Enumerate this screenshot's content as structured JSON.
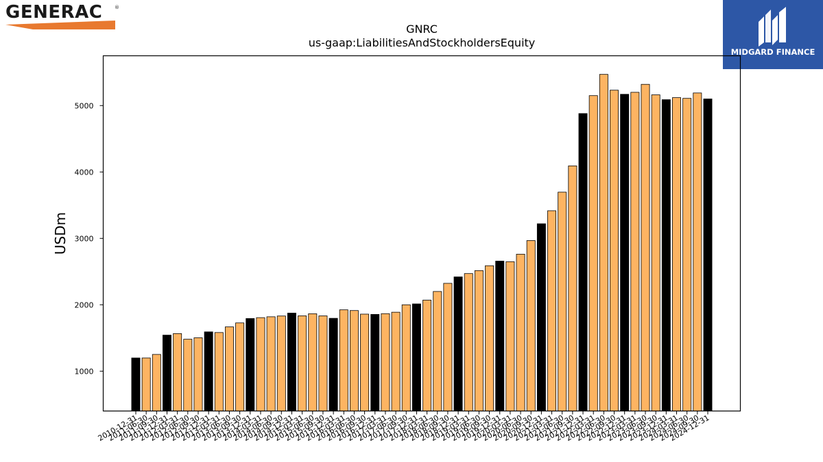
{
  "branding": {
    "company_logo": "GENERAC",
    "company_logo_reg": "®",
    "swoosh_color": "#e8792f",
    "partner_badge_text": "MIDGARD FINANCE",
    "partner_badge_color": "#2d57a6"
  },
  "chart_data": {
    "type": "bar",
    "title": "GNRC",
    "subtitle": "us-gaap:LiabilitiesAndStockholdersEquity",
    "xlabel": "",
    "ylabel": "USDm",
    "ylim": [
      400,
      5750
    ],
    "yticks": [
      1000,
      2000,
      3000,
      4000,
      5000
    ],
    "grid": false,
    "colors": {
      "annual": "#000000",
      "quarterly": "#fdb462",
      "edge": "#000000"
    },
    "categories": [
      "2010-12-31",
      "2011-06-30",
      "2011-09-30",
      "2011-12-31",
      "2012-03-31",
      "2012-06-30",
      "2012-09-30",
      "2012-12-31",
      "2013-03-31",
      "2013-06-30",
      "2013-09-30",
      "2013-12-31",
      "2014-03-31",
      "2014-06-30",
      "2014-09-30",
      "2014-12-31",
      "2015-03-31",
      "2015-06-30",
      "2015-09-30",
      "2015-12-31",
      "2016-03-31",
      "2016-06-30",
      "2016-09-30",
      "2016-12-31",
      "2017-03-31",
      "2017-06-30",
      "2017-09-30",
      "2017-12-31",
      "2018-03-31",
      "2018-06-30",
      "2018-09-30",
      "2018-12-31",
      "2019-03-31",
      "2019-06-30",
      "2019-09-30",
      "2019-12-31",
      "2020-03-31",
      "2020-06-30",
      "2020-09-30",
      "2020-12-31",
      "2021-03-31",
      "2021-06-30",
      "2021-09-30",
      "2021-12-31",
      "2022-03-31",
      "2022-06-30",
      "2022-09-30",
      "2022-12-31",
      "2023-03-31",
      "2023-06-30",
      "2023-09-30",
      "2023-12-31",
      "2024-03-31",
      "2024-06-30",
      "2024-09-30",
      "2024-12-31"
    ],
    "values": [
      1199,
      1199,
      1252,
      1543,
      1566,
      1481,
      1503,
      1592,
      1582,
      1667,
      1727,
      1793,
      1806,
      1819,
      1831,
      1875,
      1834,
      1865,
      1833,
      1796,
      1924,
      1913,
      1859,
      1855,
      1866,
      1888,
      2000,
      2013,
      2070,
      2200,
      2323,
      2420,
      2470,
      2515,
      2588,
      2658,
      2649,
      2762,
      2967,
      3220,
      3416,
      3696,
      4092,
      4880,
      5150,
      5470,
      5232,
      5170,
      5200,
      5320,
      5162,
      5089,
      5120,
      5109,
      5190,
      5100
    ],
    "annual_flags": [
      true,
      false,
      false,
      true,
      false,
      false,
      false,
      true,
      false,
      false,
      false,
      true,
      false,
      false,
      false,
      true,
      false,
      false,
      false,
      true,
      false,
      false,
      false,
      true,
      false,
      false,
      false,
      true,
      false,
      false,
      false,
      true,
      false,
      false,
      false,
      true,
      false,
      false,
      false,
      true,
      false,
      false,
      false,
      true,
      false,
      false,
      false,
      true,
      false,
      false,
      false,
      true,
      false,
      false,
      false,
      true
    ]
  }
}
